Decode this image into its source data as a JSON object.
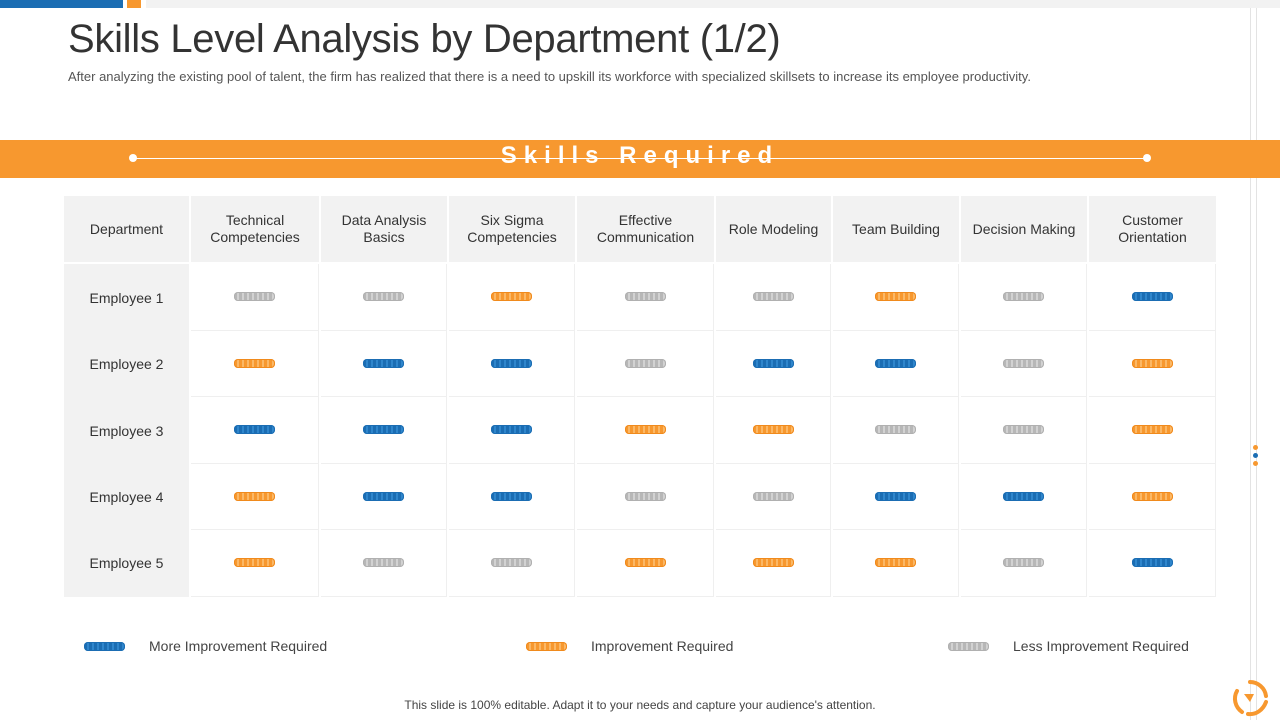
{
  "page": {
    "title": "Skills Level Analysis by Department (1/2)",
    "subtitle": "After analyzing the existing pool of talent, the firm has realized that there is a need to upskill its workforce with specialized skillsets to increase its employee productivity.",
    "banner_label": "Skills Required",
    "footer": "This slide is 100% editable. Adapt it to your needs and capture your audience's attention."
  },
  "colors": {
    "accent_orange": "#f7982f",
    "accent_blue": "#1b6db3",
    "neutral_grey": "#b7b7b7",
    "header_bg": "#f2f2f2"
  },
  "table": {
    "header": {
      "department": "Department",
      "skills": [
        "Technical Competencies",
        "Data Analysis Basics",
        "Six Sigma Competencies",
        "Effective Communication",
        "Role Modeling",
        "Team Building",
        "Decision Making",
        "Customer Orientation"
      ]
    },
    "rows": [
      {
        "name": "Employee 1",
        "levels": [
          "less",
          "less",
          "improve",
          "less",
          "less",
          "improve",
          "less",
          "more"
        ]
      },
      {
        "name": "Employee 2",
        "levels": [
          "improve",
          "more",
          "more",
          "less",
          "more",
          "more",
          "less",
          "improve"
        ]
      },
      {
        "name": "Employee 3",
        "levels": [
          "more",
          "more",
          "more",
          "improve",
          "improve",
          "less",
          "less",
          "improve"
        ]
      },
      {
        "name": "Employee 4",
        "levels": [
          "improve",
          "more",
          "more",
          "less",
          "less",
          "more",
          "more",
          "improve"
        ]
      },
      {
        "name": "Employee 5",
        "levels": [
          "improve",
          "less",
          "less",
          "improve",
          "improve",
          "improve",
          "less",
          "more"
        ]
      }
    ]
  },
  "legend": [
    {
      "key": "more",
      "label": "More Improvement Required",
      "color": "blue"
    },
    {
      "key": "improve",
      "label": "Improvement Required",
      "color": "orange"
    },
    {
      "key": "less",
      "label": "Less Improvement Required",
      "color": "grey"
    }
  ]
}
